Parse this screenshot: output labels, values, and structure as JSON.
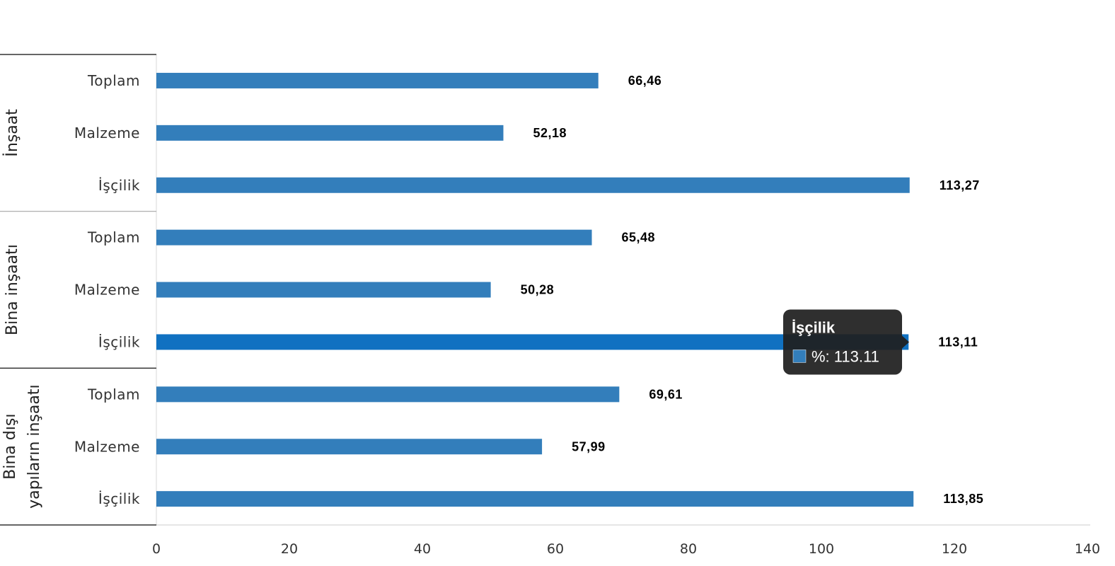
{
  "chart_data": {
    "type": "bar",
    "orientation": "horizontal",
    "groups": [
      {
        "name": "İnşaat",
        "lines": [
          "İnşaat"
        ],
        "categories": [
          "Toplam",
          "Malzeme",
          "İşçilik"
        ],
        "values": [
          66.46,
          52.18,
          113.27
        ],
        "labels": [
          "66,46",
          "52,18",
          "113,27"
        ]
      },
      {
        "name": "Bina inşaatı",
        "lines": [
          "Bina inşaatı"
        ],
        "categories": [
          "Toplam",
          "Malzeme",
          "İşçilik"
        ],
        "values": [
          65.48,
          50.28,
          113.11
        ],
        "labels": [
          "65,48",
          "50,28",
          "113,11"
        ]
      },
      {
        "name": "Bina dışı yapıların inşaatı",
        "lines": [
          "Bina dışı",
          "yapıların inşaatı"
        ],
        "categories": [
          "Toplam",
          "Malzeme",
          "İşçilik"
        ],
        "values": [
          69.61,
          57.99,
          113.85
        ],
        "labels": [
          "69,61",
          "57,99",
          "113,85"
        ]
      }
    ],
    "xlim": [
      0,
      140
    ],
    "xticks": [
      0,
      20,
      40,
      60,
      80,
      100,
      120,
      140
    ],
    "xticklabels": [
      "0",
      "20",
      "40",
      "60",
      "80",
      "100",
      "120",
      "140"
    ],
    "bar_color": "#337ebb",
    "highlight_color": "#1071c1",
    "grid": false,
    "legend": "none",
    "tooltip": {
      "group_index": 1,
      "category_index": 2,
      "title": "İşçilik",
      "text": "%: 113.11"
    }
  }
}
